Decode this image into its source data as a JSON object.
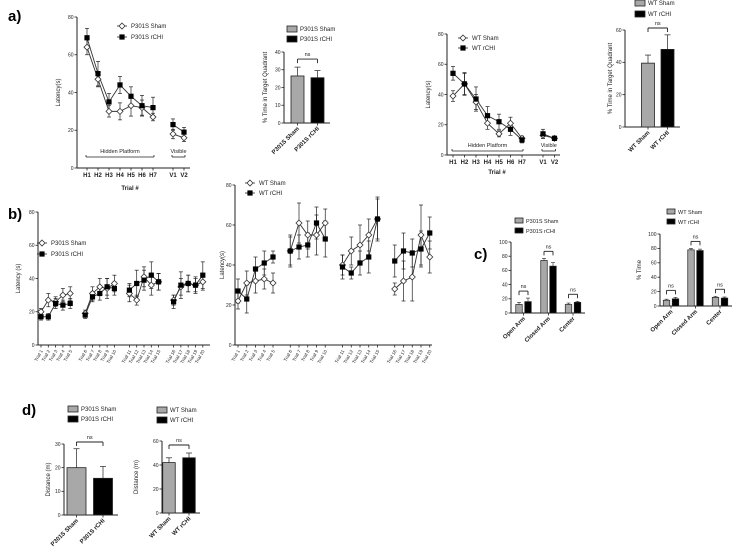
{
  "panels": {
    "a": "a)",
    "b": "b)",
    "c": "c)",
    "d": "d)"
  },
  "colors": {
    "sham_bar": "#a8a8a8",
    "rchi_bar": "#000000",
    "line": "#333333"
  },
  "chart_data": [
    {
      "type": "line",
      "panel": "a",
      "ylabel": "Latency(s)",
      "xlabel": "Trial #",
      "ylim": [
        0,
        80
      ],
      "yticks": [
        0,
        20,
        40,
        60,
        80
      ],
      "categories": [
        "H1",
        "H2",
        "H3",
        "H4",
        "H5",
        "H6",
        "H7",
        "V1",
        "V2"
      ],
      "group_sizes": [
        7,
        2
      ],
      "group_labels": [
        "Hidden Platform",
        "Visible"
      ],
      "series": [
        {
          "name": "P301S Sham",
          "marker": "open-diamond",
          "values": [
            64,
            47,
            30,
            30,
            33,
            32,
            27,
            18,
            16
          ],
          "errors": [
            4,
            4,
            3,
            4.5,
            5.5,
            4,
            2,
            2.5,
            2
          ]
        },
        {
          "name": "P301S rCHI",
          "marker": "filled-square",
          "values": [
            69,
            50,
            35,
            44,
            38,
            33,
            32,
            23,
            19
          ],
          "errors": [
            5,
            6.5,
            4.5,
            4.5,
            5,
            5.5,
            5.5,
            3,
            2.5
          ]
        }
      ]
    },
    {
      "type": "bar",
      "panel": "a",
      "ylabel": "% Time in Target Quadrant",
      "ylim": [
        0,
        40
      ],
      "yticks": [
        0,
        10,
        20,
        30,
        40
      ],
      "categories": [
        "P301S Sham",
        "P301S rCHI"
      ],
      "legend": [
        "P301S Sham",
        "P301S rCHI"
      ],
      "values": [
        26.5,
        25.5
      ],
      "errors": [
        5,
        4
      ],
      "comparisons": [
        {
          "label": "ns"
        }
      ]
    },
    {
      "type": "line",
      "panel": "a",
      "ylabel": "Latency(s)",
      "xlabel": "Trial #",
      "ylim": [
        0,
        80
      ],
      "yticks": [
        0,
        20,
        40,
        60,
        80
      ],
      "categories": [
        "H1",
        "H2",
        "H3",
        "H4",
        "H5",
        "H6",
        "H7",
        "V1",
        "V2"
      ],
      "group_sizes": [
        7,
        2
      ],
      "group_labels": [
        "Hidden Platform",
        "Visible"
      ],
      "series": [
        {
          "name": "WT Sham",
          "marker": "open-diamond",
          "values": [
            39,
            47,
            35,
            21,
            14,
            21,
            11,
            13,
            11
          ],
          "errors": [
            3.5,
            7,
            5,
            4,
            2,
            4,
            1.5,
            2,
            1.5
          ]
        },
        {
          "name": "WT rCHI",
          "marker": "filled-square",
          "values": [
            54,
            47,
            37,
            26,
            22,
            17,
            10,
            14,
            11
          ],
          "errors": [
            4.5,
            7.5,
            8,
            6,
            5,
            4,
            2,
            3,
            1.5
          ]
        }
      ]
    },
    {
      "type": "bar",
      "panel": "a",
      "ylabel": "% Time in Target Quadrant",
      "ylim": [
        0,
        60
      ],
      "yticks": [
        0,
        20,
        40,
        60
      ],
      "categories": [
        "WT Sham",
        "WT rCHI"
      ],
      "legend": [
        "WT Sham",
        "WT rCHI"
      ],
      "values": [
        39.5,
        48
      ],
      "errors": [
        5,
        9
      ],
      "comparisons": [
        {
          "label": "ns"
        }
      ]
    },
    {
      "type": "line",
      "panel": "b",
      "ylabel": "Latency (s)",
      "ylim": [
        0,
        80
      ],
      "yticks": [
        0,
        20,
        40,
        60,
        80
      ],
      "categories": [
        "Trial 1",
        "Trial 2",
        "Trial 3",
        "Trial 4",
        "Trial 5",
        "Trial 6",
        "Trial 7",
        "Trial 8",
        "Trial 9",
        "Trial 10",
        "Trial 11",
        "Trial 12",
        "Trial 13",
        "Trial 14",
        "Trial 15",
        "Trial 16",
        "Trial 17",
        "Trial 18",
        "Trial 19",
        "Trial 20"
      ],
      "group_sizes": [
        5,
        5,
        5,
        5
      ],
      "series": [
        {
          "name": "P301S Sham",
          "marker": "open-diamond",
          "values": [
            20,
            27,
            26,
            30,
            31,
            19,
            31,
            35,
            34,
            37,
            31,
            27,
            41,
            36,
            38,
            27,
            35,
            37,
            36,
            38
          ],
          "errors": [
            2,
            4,
            3,
            4,
            4,
            2,
            4,
            5,
            6,
            5,
            5,
            3,
            6,
            6,
            5,
            3,
            5,
            5,
            5,
            5
          ]
        },
        {
          "name": "P301S rCHI",
          "marker": "filled-square",
          "values": [
            17,
            17,
            25,
            24,
            25,
            18,
            29,
            31,
            35,
            34,
            33,
            37,
            39,
            42,
            38,
            26,
            36,
            37,
            36,
            42
          ],
          "errors": [
            2,
            2,
            3,
            3,
            3,
            2,
            3,
            4,
            5,
            4,
            4,
            8,
            6,
            8,
            5,
            4,
            8,
            5,
            4,
            8
          ]
        }
      ]
    },
    {
      "type": "line",
      "panel": "b",
      "ylabel": "Latency(s)",
      "ylim": [
        0,
        80
      ],
      "yticks": [
        0,
        20,
        40,
        60,
        80
      ],
      "categories": [
        "Trial 1",
        "Trial 2",
        "Trial 3",
        "Trial 4",
        "Trial 5",
        "Trial 6",
        "Trial 7",
        "Trial 8",
        "Trial 9",
        "Trial 10",
        "Trial 11",
        "Trial 12",
        "Trial 13",
        "Trial 14",
        "Trial 15",
        "Trial 16",
        "Trial 17",
        "Trial 18",
        "Trial 19",
        "Trial 20"
      ],
      "group_sizes": [
        5,
        5,
        5,
        5
      ],
      "series": [
        {
          "name": "WT Sham",
          "marker": "open-diamond",
          "values": [
            22,
            31,
            32,
            33,
            31,
            47,
            61,
            55,
            55,
            61,
            40,
            47,
            50,
            55,
            63,
            28,
            32,
            34,
            55,
            44
          ],
          "errors": [
            4,
            6,
            6,
            5,
            5,
            7,
            10,
            7,
            10,
            7,
            5,
            7,
            10,
            8,
            10,
            3,
            10,
            12,
            15,
            8
          ]
        },
        {
          "name": "WT rCHI",
          "marker": "filled-square",
          "values": [
            27,
            23,
            38,
            41,
            44,
            47,
            49,
            50,
            61,
            53,
            39,
            36,
            41,
            44,
            63,
            42,
            47,
            46,
            48,
            56
          ],
          "errors": [
            6,
            7,
            6,
            6,
            3,
            8,
            6,
            6,
            8,
            9,
            6,
            3,
            6,
            8,
            11,
            8,
            9,
            7,
            9,
            8
          ]
        }
      ]
    },
    {
      "type": "grouped-bar",
      "panel": "c",
      "ylabel": "",
      "ylim": [
        0,
        100
      ],
      "yticks": [
        0,
        20,
        40,
        60,
        80,
        100
      ],
      "categories": [
        "Open Arm",
        "Closed Arm",
        "Center"
      ],
      "series": [
        {
          "name": "P301S Sham",
          "values": [
            12,
            74,
            12
          ],
          "errors": [
            3,
            3,
            2
          ]
        },
        {
          "name": "P301S rCHI",
          "values": [
            16,
            66,
            15
          ],
          "errors": [
            5,
            5,
            1.5
          ]
        }
      ],
      "comparisons": [
        {
          "label": "ns"
        },
        {
          "label": "ns"
        },
        {
          "label": "ns"
        }
      ]
    },
    {
      "type": "grouped-bar",
      "panel": "c",
      "ylabel": "% Time",
      "ylim": [
        0,
        100
      ],
      "yticks": [
        0,
        20,
        40,
        60,
        80,
        100
      ],
      "categories": [
        "Open Arm",
        "Closed Arm",
        "Center"
      ],
      "series": [
        {
          "name": "WT Sham",
          "values": [
            8,
            78,
            12
          ],
          "errors": [
            1.5,
            2,
            1.5
          ]
        },
        {
          "name": "WT rCHI",
          "values": [
            10,
            77,
            11
          ],
          "errors": [
            2,
            2,
            1.5
          ]
        }
      ],
      "comparisons": [
        {
          "label": "ns"
        },
        {
          "label": "ns"
        },
        {
          "label": "ns"
        }
      ]
    },
    {
      "type": "bar",
      "panel": "d",
      "ylabel": "Distance (m)",
      "ylim": [
        0,
        30
      ],
      "yticks": [
        0,
        10,
        20,
        30
      ],
      "categories": [
        "P301S Sham",
        "P301S rCHI"
      ],
      "legend": [
        "P301S Sham",
        "P301S rCHI"
      ],
      "values": [
        20,
        15.5
      ],
      "errors": [
        8,
        5
      ],
      "comparisons": [
        {
          "label": "ns"
        }
      ]
    },
    {
      "type": "bar",
      "panel": "d",
      "ylabel": "Distance (m)",
      "ylim": [
        0,
        60
      ],
      "yticks": [
        0,
        20,
        40,
        60
      ],
      "categories": [
        "WT Sham",
        "WT rCHI"
      ],
      "legend": [
        "WT Sham",
        "WT rCHI"
      ],
      "values": [
        42,
        46
      ],
      "errors": [
        4,
        4
      ],
      "comparisons": [
        {
          "label": "ns"
        }
      ]
    }
  ]
}
